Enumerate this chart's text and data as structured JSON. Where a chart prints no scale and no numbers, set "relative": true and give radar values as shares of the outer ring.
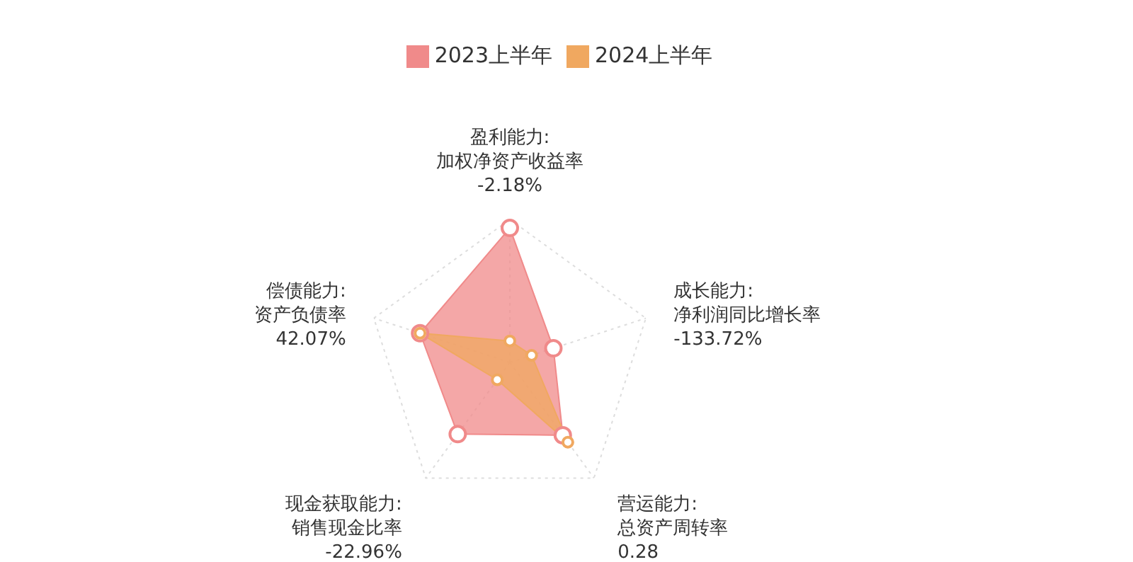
{
  "chart_data": {
    "type": "radar",
    "relative": true,
    "categories": [
      "盈利能力:\n加权净资产收益率\n-2.18%",
      "成长能力:\n净利润同比增长率\n-133.72%",
      "营运能力:\n总资产周转率\n0.28",
      "现金获取能力:\n销售现金比率\n-22.96%",
      "偿债能力:\n资产负债率\n42.07%"
    ],
    "series": [
      {
        "name": "2023上半年",
        "color": "#f08a8a",
        "values": [
          0.94,
          0.32,
          0.63,
          0.62,
          0.66
        ]
      },
      {
        "name": "2024上半年",
        "color": "#f0a860",
        "values": [
          0.15,
          0.16,
          0.69,
          0.15,
          0.66
        ]
      }
    ],
    "grid": true,
    "legend": "top",
    "marker": "circle"
  }
}
